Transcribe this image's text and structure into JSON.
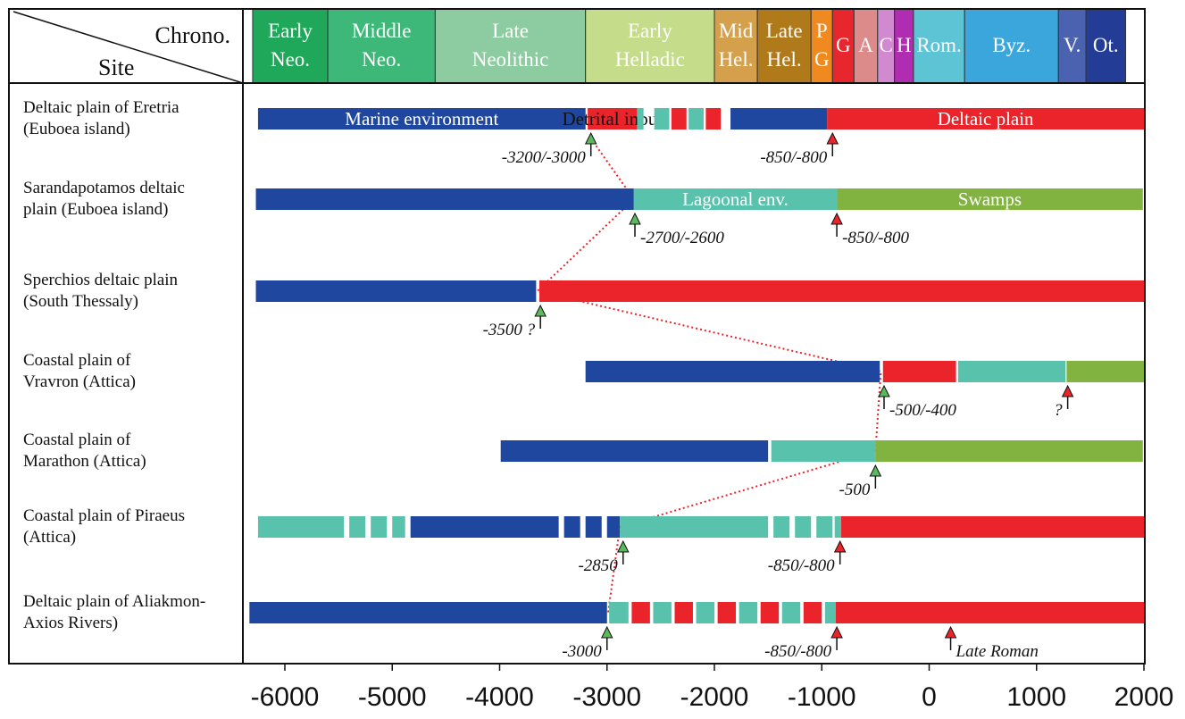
{
  "chart_data": {
    "type": "timeline",
    "header": {
      "col_label_top": "Chrono.",
      "col_label_bottom": "Site"
    },
    "periods": [
      {
        "l1": "Early",
        "l2": "Neo.",
        "start": -6300,
        "end": -5600,
        "color": "#1fa85a"
      },
      {
        "l1": "Middle",
        "l2": "Neo.",
        "start": -5600,
        "end": -4600,
        "color": "#3db878"
      },
      {
        "l1": "Late",
        "l2": "Neolithic",
        "start": -4600,
        "end": -3200,
        "color": "#8ccca0"
      },
      {
        "l1": "Early",
        "l2": "Helladic",
        "start": -3200,
        "end": -2000,
        "color": "#c5dc8a"
      },
      {
        "l1": "Mid",
        "l2": "Hel.",
        "start": -2000,
        "end": -1600,
        "color": "#d4a04b"
      },
      {
        "l1": "Late",
        "l2": "Hel.",
        "start": -1600,
        "end": -1100,
        "color": "#b07a1a"
      },
      {
        "l1": "P",
        "l2": "G",
        "start": -1100,
        "end": -900,
        "color": "#f08a20"
      },
      {
        "l1": "G",
        "l2": "",
        "start": -900,
        "end": -700,
        "color": "#e8262d"
      },
      {
        "l1": "A",
        "l2": "",
        "start": -700,
        "end": -480,
        "color": "#dc8a8a"
      },
      {
        "l1": "C",
        "l2": "",
        "start": -480,
        "end": -323,
        "color": "#d18ad0"
      },
      {
        "l1": "H",
        "l2": "",
        "start": -323,
        "end": -146,
        "color": "#b02cb0"
      },
      {
        "l1": "Rom.",
        "l2": "",
        "start": -146,
        "end": 330,
        "color": "#5cc4d4"
      },
      {
        "l1": "Byz.",
        "l2": "",
        "start": 330,
        "end": 1204,
        "color": "#3aa6dc"
      },
      {
        "l1": "V.",
        "l2": "",
        "start": 1204,
        "end": 1460,
        "color": "#4a62b0"
      },
      {
        "l1": "Ot.",
        "l2": "",
        "start": 1460,
        "end": 1830,
        "color": "#233c96"
      }
    ],
    "colors": {
      "marine": "#1f47a0",
      "red": "#ea242a",
      "lagoon": "#58c2ac",
      "swamp": "#82b240"
    },
    "sites": [
      {
        "name1": "Deltaic plain of Eretria",
        "name2": "(Euboea island)",
        "segments": [
          {
            "start": -6250,
            "end": -3200,
            "color": "marine",
            "label": "Marine environment"
          },
          {
            "start": -3180,
            "end": -2720,
            "color": "red",
            "label": "Detrital input"
          },
          {
            "start": -2720,
            "end": -2660,
            "color": "lagoon"
          },
          {
            "start": -2560,
            "end": -2420,
            "color": "lagoon"
          },
          {
            "start": -2400,
            "end": -2260,
            "color": "red"
          },
          {
            "start": -2240,
            "end": -2100,
            "color": "lagoon"
          },
          {
            "start": -2080,
            "end": -1940,
            "color": "red"
          },
          {
            "start": -1850,
            "end": -950,
            "color": "marine"
          },
          {
            "start": -950,
            "end": 2000,
            "color": "red",
            "label": "Deltaic plain"
          }
        ],
        "markers": [
          {
            "x": -3150,
            "kind": "green",
            "label": "-3200/-3000",
            "label_side": "left"
          },
          {
            "x": -900,
            "kind": "red",
            "label": "-850/-800",
            "label_side": "left"
          }
        ]
      },
      {
        "name1": "Sarandapotamos deltaic",
        "name2": "plain (Euboea island)",
        "segments": [
          {
            "start": -6270,
            "end": -2750,
            "color": "marine"
          },
          {
            "start": -2750,
            "end": -860,
            "color": "lagoon",
            "label": "Lagoonal env."
          },
          {
            "start": -860,
            "end": 1990,
            "color": "swamp",
            "label": "Swamps"
          }
        ],
        "markers": [
          {
            "x": -2740,
            "kind": "green",
            "label": "-2700/-2600",
            "label_side": "right"
          },
          {
            "x": -860,
            "kind": "red",
            "label": "-850/-800",
            "label_side": "right"
          }
        ]
      },
      {
        "name1": "Sperchios deltaic plain",
        "name2": "(South Thessaly)",
        "segments": [
          {
            "start": -6270,
            "end": -3660,
            "color": "marine"
          },
          {
            "start": -3630,
            "end": 2000,
            "color": "red"
          }
        ],
        "markers": [
          {
            "x": -3620,
            "kind": "green",
            "label": "-3500 ?",
            "label_side": "left"
          }
        ]
      },
      {
        "name1": "Coastal plain of",
        "name2": "Vravron (Attica)",
        "segments": [
          {
            "start": -3200,
            "end": -460,
            "color": "marine"
          },
          {
            "start": -430,
            "end": 250,
            "color": "red"
          },
          {
            "start": 270,
            "end": 1270,
            "color": "lagoon"
          },
          {
            "start": 1280,
            "end": 2000,
            "color": "swamp"
          }
        ],
        "markers": [
          {
            "x": -420,
            "kind": "green",
            "label": "-500/-400",
            "label_side": "right"
          },
          {
            "x": 1290,
            "kind": "red",
            "label": "?",
            "label_side": "left"
          }
        ]
      },
      {
        "name1": "Coastal plain of",
        "name2": "Marathon (Attica)",
        "segments": [
          {
            "start": -3990,
            "end": -1500,
            "color": "marine"
          },
          {
            "start": -1470,
            "end": -500,
            "color": "lagoon"
          },
          {
            "start": -500,
            "end": 1990,
            "color": "swamp"
          }
        ],
        "markers": [
          {
            "x": -500,
            "kind": "green",
            "label": "-500",
            "label_side": "left"
          }
        ]
      },
      {
        "name1": "Coastal plain of Piraeus",
        "name2": "(Attica)",
        "segments": [
          {
            "start": -6250,
            "end": -5450,
            "color": "lagoon"
          },
          {
            "start": -5400,
            "end": -5250,
            "color": "lagoon"
          },
          {
            "start": -5200,
            "end": -5050,
            "color": "lagoon"
          },
          {
            "start": -5000,
            "end": -4880,
            "color": "lagoon"
          },
          {
            "start": -4830,
            "end": -3450,
            "color": "marine"
          },
          {
            "start": -3400,
            "end": -3250,
            "color": "marine"
          },
          {
            "start": -3200,
            "end": -3050,
            "color": "marine"
          },
          {
            "start": -3000,
            "end": -2880,
            "color": "marine"
          },
          {
            "start": -2880,
            "end": -1500,
            "color": "lagoon"
          },
          {
            "start": -1450,
            "end": -1300,
            "color": "lagoon"
          },
          {
            "start": -1250,
            "end": -1100,
            "color": "lagoon"
          },
          {
            "start": -1050,
            "end": -900,
            "color": "lagoon"
          },
          {
            "start": -880,
            "end": -820,
            "color": "lagoon"
          },
          {
            "start": -820,
            "end": 2000,
            "color": "red"
          }
        ],
        "markers": [
          {
            "x": -2850,
            "kind": "green",
            "label": "-2850",
            "label_side": "left"
          },
          {
            "x": -830,
            "kind": "red",
            "label": "-850/-800",
            "label_side": "left"
          }
        ]
      },
      {
        "name1": "Deltaic plain of Aliakmon-",
        "name2": "Axios Rivers)",
        "segments": [
          {
            "start": -6330,
            "end": -3000,
            "color": "marine"
          },
          {
            "start": -2980,
            "end": -2800,
            "color": "lagoon"
          },
          {
            "start": -2770,
            "end": -2600,
            "color": "red"
          },
          {
            "start": -2570,
            "end": -2400,
            "color": "lagoon"
          },
          {
            "start": -2370,
            "end": -2200,
            "color": "red"
          },
          {
            "start": -2170,
            "end": -2000,
            "color": "lagoon"
          },
          {
            "start": -1970,
            "end": -1800,
            "color": "red"
          },
          {
            "start": -1770,
            "end": -1600,
            "color": "lagoon"
          },
          {
            "start": -1570,
            "end": -1400,
            "color": "red"
          },
          {
            "start": -1370,
            "end": -1200,
            "color": "lagoon"
          },
          {
            "start": -1170,
            "end": -1000,
            "color": "red"
          },
          {
            "start": -970,
            "end": -870,
            "color": "lagoon"
          },
          {
            "start": -870,
            "end": 2000,
            "color": "red"
          }
        ],
        "markers": [
          {
            "x": -3000,
            "kind": "green",
            "label": "-3000",
            "label_side": "left"
          },
          {
            "x": -860,
            "kind": "red",
            "label": "-850/-800",
            "label_side": "left"
          },
          {
            "x": 200,
            "kind": "red",
            "label": "Late Roman",
            "label_side": "right"
          }
        ]
      }
    ],
    "correlation_line": [
      {
        "site": 0,
        "x": -3150
      },
      {
        "site": 1,
        "x": -2750
      },
      {
        "site": 2,
        "x": -3650
      },
      {
        "site": 3,
        "x": -450
      },
      {
        "site": 4,
        "x": -500
      },
      {
        "site": 5,
        "x": -2880
      },
      {
        "site": 6,
        "x": -2990
      }
    ],
    "x_ticks": [
      -6000,
      -5000,
      -4000,
      -3000,
      -2000,
      -1000,
      0,
      1000,
      2000
    ],
    "x_range": [
      -6400,
      2000
    ]
  }
}
